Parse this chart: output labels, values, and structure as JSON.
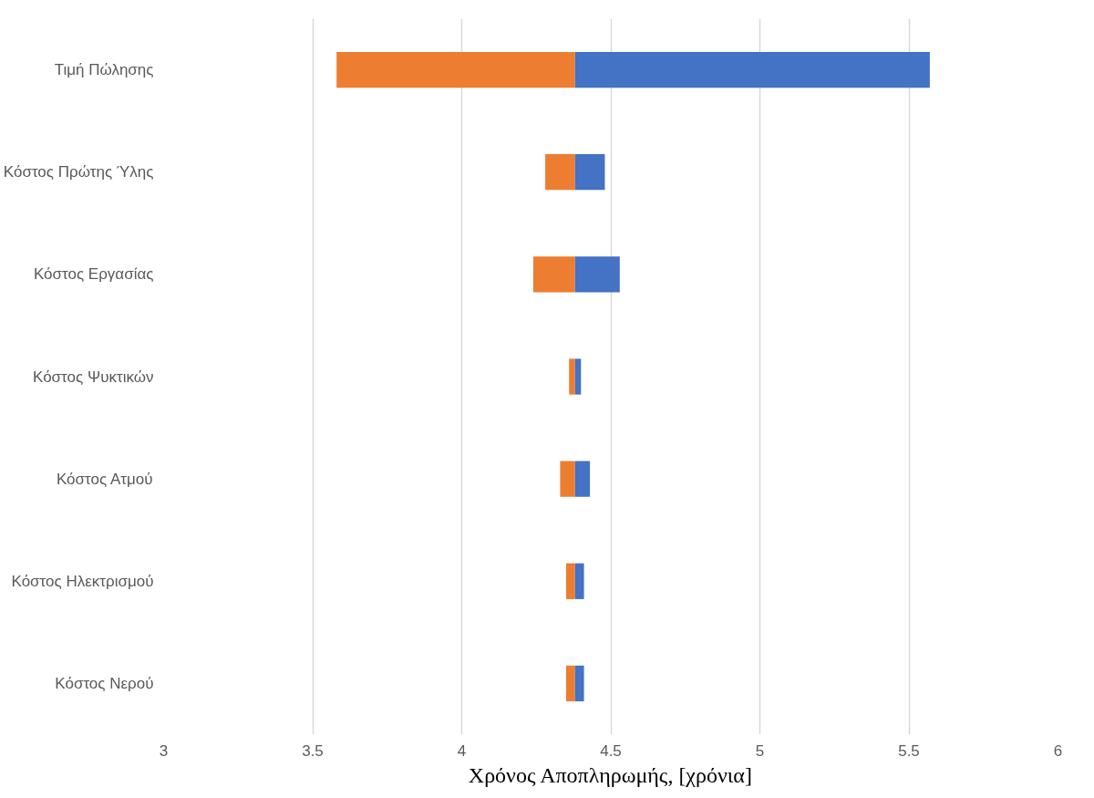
{
  "chart_data": {
    "type": "bar",
    "orientation": "horizontal",
    "xlabel": "Χρόνος Αποπληρωμής, [χρόνια]",
    "categories": [
      "Τιμή Πώλησης",
      "Κόστος Πρώτης Ύλης",
      "Κόστος Εργασίας",
      "Κόστος Ψυκτικών",
      "Κόστος Ατμού",
      "Κόστος Ηλεκτρισμού",
      "Κόστος Νερού"
    ],
    "series": [
      {
        "color": "#ed7d31",
        "base": [
          3.58,
          4.28,
          4.24,
          4.36,
          4.33,
          4.35,
          4.35
        ],
        "values": [
          0.8,
          0.1,
          0.14,
          0.02,
          0.05,
          0.03,
          0.03
        ]
      },
      {
        "color": "#4472c4",
        "base": [
          4.38,
          4.38,
          4.38,
          4.38,
          4.38,
          4.38,
          4.38
        ],
        "values": [
          1.19,
          0.1,
          0.15,
          0.02,
          0.05,
          0.03,
          0.03
        ]
      }
    ],
    "xlim": [
      3,
      6
    ],
    "xticks": [
      3,
      3.5,
      4,
      4.5,
      5,
      5.5,
      6
    ],
    "grid": "x"
  }
}
